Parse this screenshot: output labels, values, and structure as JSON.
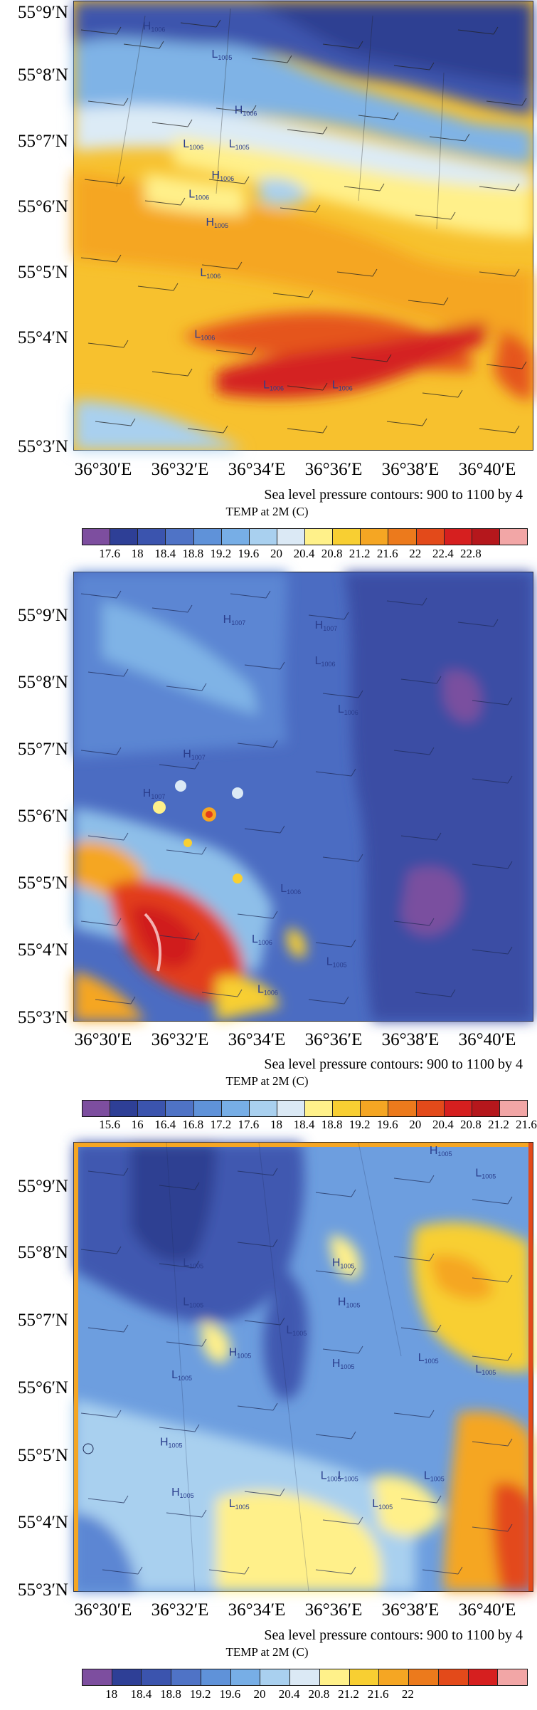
{
  "panels": [
    {
      "id": "panel1",
      "lat_labels": [
        "55°9′N",
        "55°8′N",
        "55°7′N",
        "55°6′N",
        "55°5′N",
        "55°4′N",
        "55°3′N"
      ],
      "lon_labels": [
        "36°30′E",
        "36°32′E",
        "36°34′E",
        "36°36′E",
        "36°38′E",
        "36°40′E"
      ],
      "subtitle": "Sea level pressure contours: 900 to 1100 by 4",
      "colorbar_title": "TEMP at 2M (C)",
      "colorbar_labels": [
        "17.6",
        "18",
        "18.4",
        "18.8",
        "19.2",
        "19.6",
        "20",
        "20.4",
        "20.8",
        "21.2",
        "21.6",
        "22",
        "22.4",
        "22.8"
      ],
      "colorbar_colors": [
        "#7d4e9f",
        "#2e3f96",
        "#3b54ae",
        "#4f73c6",
        "#5f92d9",
        "#77aee6",
        "#a9d0ef",
        "#dbe9f5",
        "#fff18a",
        "#f8cf32",
        "#f5a623",
        "#ec7a1c",
        "#e34a1a",
        "#d61f1f",
        "#b5171c",
        "#f2a6a6"
      ],
      "pressure_labels": [
        {
          "text": "H",
          "sub": "1006"
        },
        {
          "text": "L",
          "sub": "1005"
        },
        {
          "text": "H",
          "sub": "1006"
        },
        {
          "text": "L",
          "sub": "1006"
        },
        {
          "text": "L",
          "sub": "1005"
        },
        {
          "text": "H",
          "sub": "1006"
        },
        {
          "text": "L",
          "sub": "1006"
        },
        {
          "text": "H",
          "sub": "1005"
        },
        {
          "text": "L",
          "sub": "1006"
        },
        {
          "text": "L",
          "sub": "1006"
        },
        {
          "text": "L",
          "sub": "1006"
        },
        {
          "text": "L",
          "sub": "1006"
        }
      ]
    },
    {
      "id": "panel2",
      "lat_labels": [
        "55°9′N",
        "55°8′N",
        "55°7′N",
        "55°6′N",
        "55°5′N",
        "55°4′N",
        "55°3′N"
      ],
      "lon_labels": [
        "36°30′E",
        "36°32′E",
        "36°34′E",
        "36°36′E",
        "36°38′E",
        "36°40′E"
      ],
      "subtitle": "Sea level pressure contours: 900 to 1100 by 4",
      "colorbar_title": "TEMP at 2M (C)",
      "colorbar_labels": [
        "15.6",
        "16",
        "16.4",
        "16.8",
        "17.2",
        "17.6",
        "18",
        "18.4",
        "18.8",
        "19.2",
        "19.6",
        "20",
        "20.4",
        "20.8",
        "21.2",
        "21.6"
      ],
      "colorbar_colors": [
        "#7d4e9f",
        "#2e3f96",
        "#3b54ae",
        "#4f73c6",
        "#5f92d9",
        "#77aee6",
        "#a9d0ef",
        "#dbe9f5",
        "#fff18a",
        "#f8cf32",
        "#f5a623",
        "#ec7a1c",
        "#e34a1a",
        "#d61f1f",
        "#b5171c",
        "#f2a6a6"
      ],
      "pressure_labels": [
        {
          "text": "H",
          "sub": "1007"
        },
        {
          "text": "H",
          "sub": "1007"
        },
        {
          "text": "L",
          "sub": "1006"
        },
        {
          "text": "L",
          "sub": "1006"
        },
        {
          "text": "H",
          "sub": "1007"
        },
        {
          "text": "H",
          "sub": "1007"
        },
        {
          "text": "L",
          "sub": "1006"
        },
        {
          "text": "L",
          "sub": "1006"
        },
        {
          "text": "L",
          "sub": "1005"
        },
        {
          "text": "L",
          "sub": "1006"
        }
      ]
    },
    {
      "id": "panel3",
      "lat_labels": [
        "55°9′N",
        "55°8′N",
        "55°7′N",
        "55°6′N",
        "55°5′N",
        "55°4′N",
        "55°3′N"
      ],
      "lon_labels": [
        "36°30′E",
        "36°32′E",
        "36°34′E",
        "36°36′E",
        "36°38′E",
        "36°40′E"
      ],
      "subtitle": "Sea level pressure contours: 900 to 1100 by 4",
      "colorbar_title": "TEMP at 2M (C)",
      "colorbar_labels": [
        "18",
        "18.4",
        "18.8",
        "19.2",
        "19.6",
        "20",
        "20.4",
        "20.8",
        "21.2",
        "21.6",
        "22"
      ],
      "colorbar_colors": [
        "#7d4e9f",
        "#2e3f96",
        "#3b54ae",
        "#4f73c6",
        "#5f92d9",
        "#77aee6",
        "#a9d0ef",
        "#dbe9f5",
        "#fff18a",
        "#f8cf32",
        "#f5a623",
        "#ec7a1c",
        "#e34a1a",
        "#d61f1f",
        "#f2a6a6"
      ],
      "pressure_labels": [
        {
          "text": "H",
          "sub": "1005"
        },
        {
          "text": "L",
          "sub": "1005"
        },
        {
          "text": "H",
          "sub": "1005"
        },
        {
          "text": "L",
          "sub": "1005"
        },
        {
          "text": "H",
          "sub": "1005"
        },
        {
          "text": "L",
          "sub": "1005"
        },
        {
          "text": "L",
          "sub": "1005"
        },
        {
          "text": "H",
          "sub": "1005"
        },
        {
          "text": "L",
          "sub": "1005"
        },
        {
          "text": "H",
          "sub": "1005"
        },
        {
          "text": "L",
          "sub": "1005"
        },
        {
          "text": "L",
          "sub": "1005"
        },
        {
          "text": "H",
          "sub": "1005"
        },
        {
          "text": "L",
          "sub": "1005"
        },
        {
          "text": "L",
          "sub": "1005"
        },
        {
          "text": "H",
          "sub": "1005"
        },
        {
          "text": "L",
          "sub": "1005"
        },
        {
          "text": "L",
          "sub": "1005"
        },
        {
          "text": "L",
          "sub": "1005"
        }
      ]
    }
  ]
}
